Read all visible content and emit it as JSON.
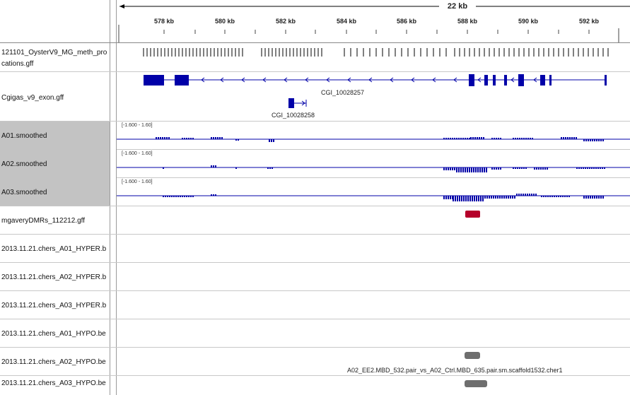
{
  "ruler": {
    "span_label": "22 kb",
    "ticks": [
      "578 kb",
      "580 kb",
      "582 kb",
      "584 kb",
      "586 kb",
      "588 kb",
      "590 kb",
      "592 kb"
    ]
  },
  "tracks": {
    "methylation": {
      "name_line1": "121101_OysterV9_MG_meth_pro",
      "name_line2": "cations.gff"
    },
    "exon": {
      "name": "Cgigas_v9_exon.gff",
      "feature_labels": [
        "CGI_10028257",
        "CGI_10028258"
      ]
    },
    "a01": {
      "name": "A01.smoothed",
      "scale": "[-1.600 - 1.60]"
    },
    "a02": {
      "name": "A02.smoothed",
      "scale": "[-1.600 - 1.60]"
    },
    "a03": {
      "name": "A03.smoothed",
      "scale": "[-1.600 - 1.60]"
    },
    "dmr": {
      "name": "mgaveryDMRs_112212.gff"
    },
    "a01_hyper": {
      "name": "2013.11.21.chers_A01_HYPER.b"
    },
    "a02_hyper": {
      "name": "2013.11.21.chers_A02_HYPER.b"
    },
    "a03_hyper": {
      "name": "2013.11.21.chers_A03_HYPER.b"
    },
    "a01_hypo": {
      "name": "2013.11.21.chers_A01_HYPO.be"
    },
    "a02_hypo": {
      "name": "2013.11.21.chers_A02_HYPO.be",
      "feature_label": "A02_EE2.MBD_532.pair_vs_A02_Ctrl.MBD_635.pair.sm.scaffold1532.cher1"
    },
    "a03_hypo": {
      "name": "2013.11.21.chers_A03_HYPO.be"
    }
  },
  "colors": {
    "feature_blue": "#0000a8",
    "dmr_red": "#b5002a",
    "selected_gray": "#c3c3c3",
    "hypo_gray": "#6e6e6e"
  }
}
